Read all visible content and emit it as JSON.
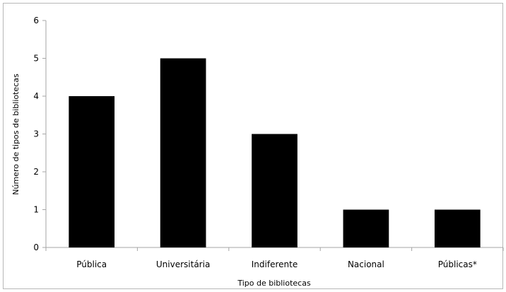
{
  "chart_data": {
    "type": "bar",
    "categories": [
      "Pública",
      "Universitária",
      "Indiferente",
      "Nacional",
      "Públicas*"
    ],
    "values": [
      4,
      5,
      3,
      1,
      1
    ],
    "title": "",
    "xlabel": "Tipo de bibliotecas",
    "ylabel": "Número de tipos de bibliotecas",
    "ylim": [
      0,
      6
    ],
    "yticks": [
      0,
      1,
      2,
      3,
      4,
      5,
      6
    ],
    "grid": false,
    "legend": "none",
    "bar_color": "#000000",
    "axis_color": "#a6a6a6"
  }
}
